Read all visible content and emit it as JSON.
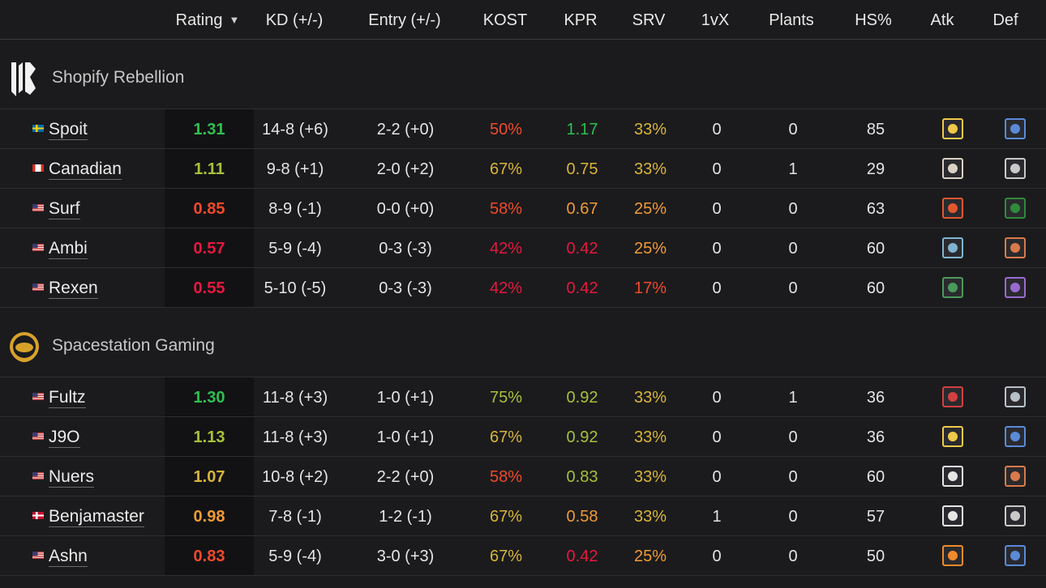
{
  "columns": {
    "rating": "Rating",
    "kd": "KD (+/-)",
    "entry": "Entry (+/-)",
    "kost": "KOST",
    "kpr": "KPR",
    "srv": "SRV",
    "onevx": "1vX",
    "plants": "Plants",
    "hs": "HS%",
    "atk": "Atk",
    "def": "Def"
  },
  "colors": {
    "green": "#2fbf4f",
    "lime": "#a6c13a",
    "yellow": "#d8b53a",
    "orange": "#f09a36",
    "red": "#f0492b",
    "crimson": "#e8173f"
  },
  "teams": [
    {
      "name": "Shopify Rebellion",
      "logo": "shopify-rebellion-logo",
      "players": [
        {
          "name": "Spoit",
          "flag": "se",
          "rating": "1.31",
          "rating_color": "green",
          "kd": "14-8 (+6)",
          "entry": "2-2 (+0)",
          "kost": "50%",
          "kost_color": "red",
          "kpr": "1.17",
          "kpr_color": "green",
          "srv": "33%",
          "srv_color": "yellow",
          "onevx": "0",
          "plants": "0",
          "hs": "85",
          "atk": "bee-operator-icon",
          "def": "wing-operator-icon"
        },
        {
          "name": "Canadian",
          "flag": "ca",
          "rating": "1.11",
          "rating_color": "lime",
          "kd": "9-8 (+1)",
          "entry": "2-0 (+2)",
          "kost": "67%",
          "kost_color": "yellow",
          "kpr": "0.75",
          "kpr_color": "yellow",
          "srv": "33%",
          "srv_color": "yellow",
          "onevx": "0",
          "plants": "1",
          "hs": "29",
          "atk": "skull-operator-icon",
          "def": "mask-operator-icon"
        },
        {
          "name": "Surf",
          "flag": "us",
          "rating": "0.85",
          "rating_color": "red",
          "kd": "8-9 (-1)",
          "entry": "0-0 (+0)",
          "kost": "58%",
          "kost_color": "red",
          "kpr": "0.67",
          "kpr_color": "orange",
          "srv": "25%",
          "srv_color": "orange",
          "onevx": "0",
          "plants": "0",
          "hs": "63",
          "atk": "shield-operator-icon",
          "def": "spade-operator-icon"
        },
        {
          "name": "Ambi",
          "flag": "us",
          "rating": "0.57",
          "rating_color": "crimson",
          "kd": "5-9 (-4)",
          "entry": "0-3 (-3)",
          "kost": "42%",
          "kost_color": "crimson",
          "kpr": "0.42",
          "kpr_color": "crimson",
          "srv": "25%",
          "srv_color": "orange",
          "onevx": "0",
          "plants": "0",
          "hs": "60",
          "atk": "gun-operator-icon",
          "def": "wall-operator-icon"
        },
        {
          "name": "Rexen",
          "flag": "us",
          "rating": "0.55",
          "rating_color": "crimson",
          "kd": "5-10 (-5)",
          "entry": "0-3 (-3)",
          "kost": "42%",
          "kost_color": "crimson",
          "kpr": "0.42",
          "kpr_color": "crimson",
          "srv": "17%",
          "srv_color": "red",
          "onevx": "0",
          "plants": "0",
          "hs": "60",
          "atk": "diamond-operator-icon",
          "def": "stripes-operator-icon"
        }
      ]
    },
    {
      "name": "Spacestation Gaming",
      "logo": "spacestation-gaming-logo",
      "players": [
        {
          "name": "Fultz",
          "flag": "us",
          "rating": "1.30",
          "rating_color": "green",
          "kd": "11-8 (+3)",
          "entry": "1-0 (+1)",
          "kost": "75%",
          "kost_color": "lime",
          "kpr": "0.92",
          "kpr_color": "lime",
          "srv": "33%",
          "srv_color": "yellow",
          "onevx": "0",
          "plants": "1",
          "hs": "36",
          "atk": "target-operator-icon",
          "def": "grid-operator-icon"
        },
        {
          "name": "J9O",
          "flag": "us",
          "rating": "1.13",
          "rating_color": "lime",
          "kd": "11-8 (+3)",
          "entry": "1-0 (+1)",
          "kost": "67%",
          "kost_color": "yellow",
          "kpr": "0.92",
          "kpr_color": "lime",
          "srv": "33%",
          "srv_color": "yellow",
          "onevx": "0",
          "plants": "0",
          "hs": "36",
          "atk": "bee-operator-icon",
          "def": "wing-operator-icon"
        },
        {
          "name": "Nuers",
          "flag": "us",
          "rating": "1.07",
          "rating_color": "yellow",
          "kd": "10-8 (+2)",
          "entry": "2-2 (+0)",
          "kost": "58%",
          "kost_color": "red",
          "kpr": "0.83",
          "kpr_color": "lime",
          "srv": "33%",
          "srv_color": "yellow",
          "onevx": "0",
          "plants": "0",
          "hs": "60",
          "atk": "claw-operator-icon",
          "def": "wall-operator-icon"
        },
        {
          "name": "Benjamaster",
          "flag": "dk",
          "rating": "0.98",
          "rating_color": "orange",
          "kd": "7-8 (-1)",
          "entry": "1-2 (-1)",
          "kost": "67%",
          "kost_color": "yellow",
          "kpr": "0.58",
          "kpr_color": "orange",
          "srv": "33%",
          "srv_color": "yellow",
          "onevx": "1",
          "plants": "0",
          "hs": "57",
          "atk": "helmet-operator-icon",
          "def": "mask-operator-icon"
        },
        {
          "name": "Ashn",
          "flag": "us",
          "rating": "0.83",
          "rating_color": "red",
          "kd": "5-9 (-4)",
          "entry": "3-0 (+3)",
          "kost": "67%",
          "kost_color": "yellow",
          "kpr": "0.42",
          "kpr_color": "crimson",
          "srv": "25%",
          "srv_color": "orange",
          "onevx": "0",
          "plants": "0",
          "hs": "50",
          "atk": "blast-operator-icon",
          "def": "wing-operator-icon"
        }
      ]
    }
  ]
}
